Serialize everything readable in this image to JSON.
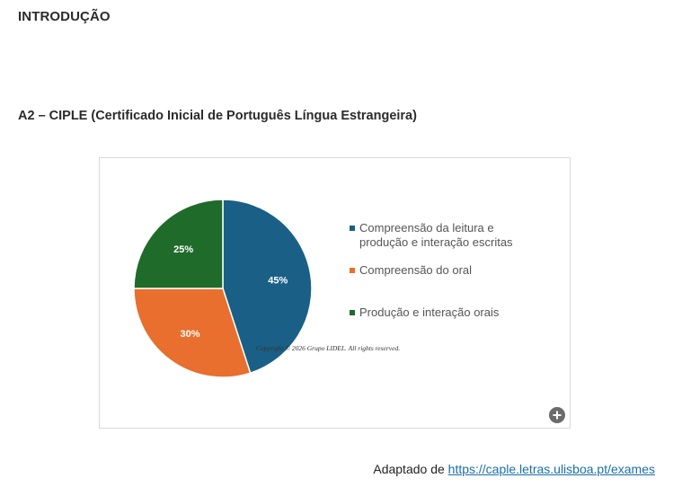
{
  "page": {
    "section_title": "INTRODUÇÃO",
    "subtitle": "A2 – CIPLE (Certificado Inicial de Português Língua Estrangeira)"
  },
  "figure": {
    "copyright": "Copyright © 2026 Grupo LIDEL. All rights reserved.",
    "zoom_icon": "plus-icon"
  },
  "chart_data": {
    "type": "pie",
    "title": "",
    "categories": [
      "Compreensão da leitura e produção e interação escritas",
      "Compreensão do oral",
      "Produção e interação orais"
    ],
    "values": [
      45,
      30,
      25
    ],
    "labels": [
      "45%",
      "30%",
      "25%"
    ],
    "colors": [
      "#1a5f86",
      "#e86f2d",
      "#1e6b2a"
    ],
    "legend": "right"
  },
  "source": {
    "prefix": "Adaptado de ",
    "link_text": "https://caple.letras.ulisboa.pt/exames"
  }
}
